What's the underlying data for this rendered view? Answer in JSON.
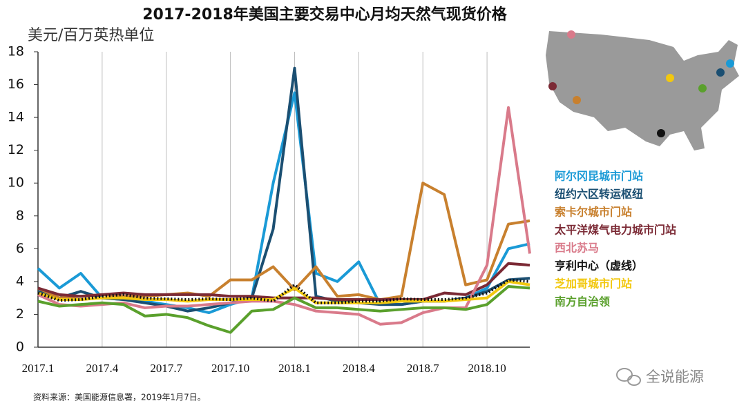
{
  "chart_data": {
    "type": "line",
    "title": "2017-2018年美国主要交易中心月均天然气现货价格",
    "y_label": "美元/百万英热单位",
    "source": "资料来源：美国能源信息署，2019年1月7日。",
    "watermark": "全说能源",
    "categories": [
      "2017.1",
      null,
      null,
      "2017.4",
      null,
      null,
      "2017.7",
      null,
      null,
      "2017.10",
      null,
      null,
      "2018.1",
      null,
      null,
      "2018.4",
      null,
      null,
      "2018.7",
      null,
      null,
      "2018.10",
      null,
      null
    ],
    "ylim": [
      0,
      18
    ],
    "yticks": [
      0,
      2,
      4,
      6,
      8,
      10,
      12,
      14,
      16,
      18
    ],
    "grid": "x",
    "series": [
      {
        "name": "阿尔冈昆城市门站",
        "color": "#1a9ad6",
        "values": [
          4.8,
          3.6,
          4.5,
          3.0,
          2.9,
          2.8,
          2.6,
          2.4,
          2.1,
          2.6,
          3.0,
          10.0,
          15.5,
          4.5,
          4.0,
          5.2,
          2.6,
          2.6,
          2.8,
          2.8,
          3.0,
          3.6,
          6.0,
          6.3
        ]
      },
      {
        "name": "纽约六区转运枢纽",
        "color": "#1b4f72",
        "values": [
          3.4,
          3.0,
          3.4,
          3.0,
          2.9,
          2.7,
          2.5,
          2.2,
          2.4,
          2.7,
          3.0,
          7.2,
          17.0,
          3.1,
          2.8,
          2.7,
          2.6,
          2.6,
          2.8,
          2.8,
          3.0,
          3.4,
          4.1,
          4.2
        ]
      },
      {
        "name": "索卡尔城市门站",
        "color": "#c8802e",
        "values": [
          3.6,
          3.0,
          3.1,
          3.2,
          3.1,
          3.1,
          3.2,
          3.3,
          3.1,
          4.1,
          4.1,
          4.9,
          3.5,
          4.9,
          3.1,
          3.2,
          2.9,
          3.1,
          10.0,
          9.3,
          3.8,
          4.1,
          7.5,
          7.7
        ]
      },
      {
        "name": "太平洋煤气电力城市门站",
        "color": "#7b2a35",
        "values": [
          3.6,
          3.2,
          3.1,
          3.2,
          3.3,
          3.2,
          3.2,
          3.2,
          3.2,
          3.1,
          3.1,
          3.0,
          3.0,
          3.0,
          2.9,
          2.9,
          2.9,
          2.9,
          2.9,
          3.3,
          3.2,
          3.8,
          5.1,
          5.0
        ]
      },
      {
        "name": "西北苏马",
        "color": "#d97a8a",
        "values": [
          3.2,
          2.6,
          2.5,
          2.6,
          2.7,
          2.4,
          2.5,
          2.5,
          2.6,
          2.7,
          2.8,
          2.8,
          2.6,
          2.2,
          2.1,
          2.0,
          1.4,
          1.5,
          2.1,
          2.4,
          2.4,
          5.0,
          14.6,
          5.7
        ]
      },
      {
        "name": "亨利中心（虚线）",
        "color": "#111111",
        "dashed": true,
        "values": [
          3.3,
          2.85,
          2.9,
          3.1,
          3.2,
          3.0,
          2.95,
          2.9,
          2.95,
          2.9,
          3.0,
          2.8,
          3.8,
          2.7,
          2.7,
          2.8,
          2.8,
          2.95,
          2.9,
          2.9,
          3.0,
          3.3,
          4.1,
          4.0
        ]
      },
      {
        "name": "芝加哥城市门站",
        "color": "#f2c80f",
        "values": [
          3.3,
          2.9,
          2.9,
          3.0,
          3.0,
          2.9,
          2.9,
          2.8,
          2.9,
          2.9,
          2.9,
          2.9,
          3.6,
          2.7,
          2.7,
          2.7,
          2.7,
          2.8,
          2.8,
          2.8,
          2.9,
          3.0,
          4.0,
          3.8
        ]
      },
      {
        "name": "南方自治领",
        "color": "#5aa02c",
        "values": [
          2.8,
          2.5,
          2.6,
          2.7,
          2.6,
          1.9,
          2.0,
          1.8,
          1.3,
          0.9,
          2.2,
          2.3,
          3.0,
          2.4,
          2.4,
          2.3,
          2.2,
          2.3,
          2.4,
          2.4,
          2.3,
          2.6,
          3.7,
          3.6
        ]
      }
    ]
  }
}
